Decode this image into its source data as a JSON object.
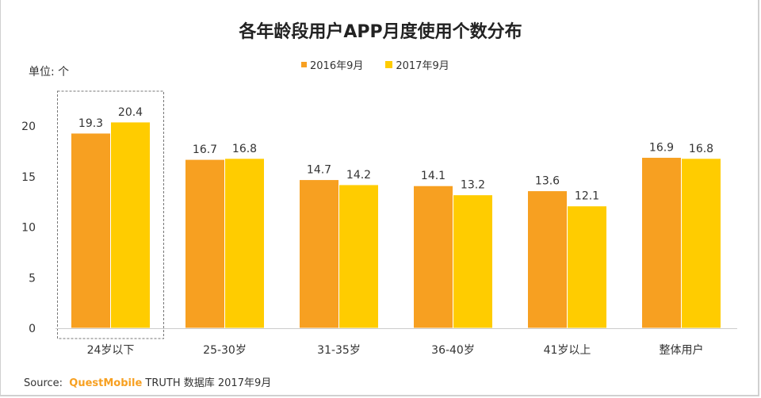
{
  "chart_data": {
    "type": "bar",
    "title": "各年龄段用户APP月度使用个数分布",
    "ylabel": "单位: 个",
    "xlabel": "",
    "ylim": [
      0,
      20
    ],
    "yticks": [
      "0",
      "5",
      "10",
      "15",
      "20"
    ],
    "categories": [
      "24岁以下",
      "25-30岁",
      "31-35岁",
      "36-40岁",
      "41岁以上",
      "整体用户"
    ],
    "series": [
      {
        "name": "2016年9月",
        "color": "#F7A021",
        "values": [
          19.3,
          16.7,
          14.7,
          14.1,
          13.6,
          16.9
        ]
      },
      {
        "name": "2017年9月",
        "color": "#FFCC00",
        "values": [
          20.4,
          16.8,
          14.2,
          13.2,
          12.1,
          16.8
        ]
      }
    ],
    "legend": "top-center",
    "grid": false,
    "highlighted_category": "24岁以下"
  },
  "source": {
    "prefix": "Source:",
    "brand": "QuestMobile",
    "text": "TRUTH 数据库 2017年9月"
  }
}
